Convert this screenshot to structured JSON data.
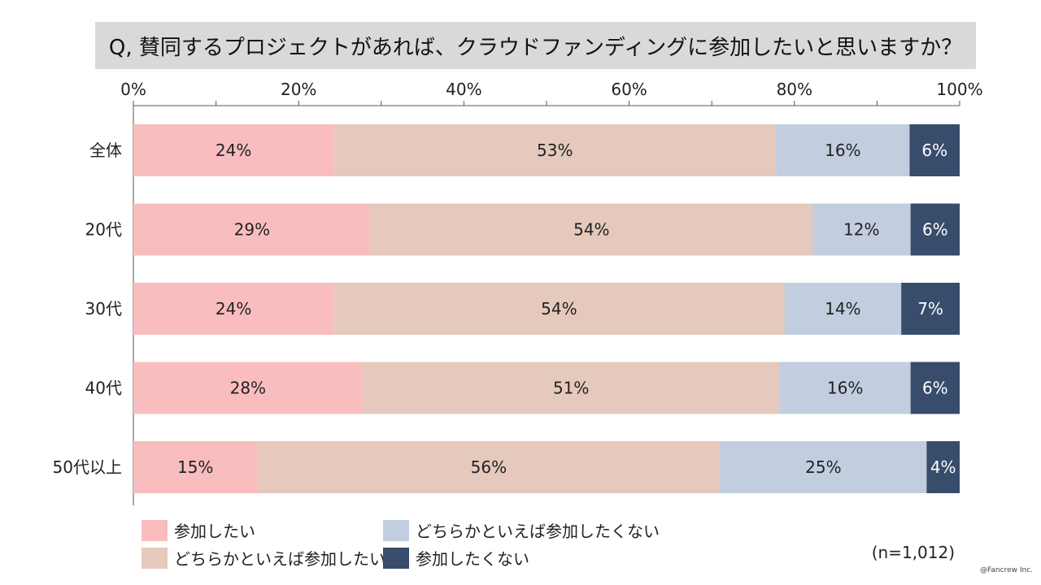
{
  "title": "Q, 賛同するプロジェクトがあれば、クラウドファンディングに参加したいと思いますか？",
  "note": "(n=1,012)",
  "copyright": "@Fancrew Inc.",
  "chart_data": {
    "type": "bar",
    "orientation": "horizontal",
    "stacked": true,
    "percent_stacked": true,
    "title": "Q, 賛同するプロジェクトがあれば、クラウドファンディングに参加したいと思いますか？",
    "xlabel": "",
    "ylabel": "",
    "xlim": [
      0,
      100
    ],
    "x_ticks": [
      "0%",
      "20%",
      "40%",
      "60%",
      "80%",
      "100%"
    ],
    "categories": [
      "全体",
      "20代",
      "30代",
      "40代",
      "50代以上"
    ],
    "series": [
      {
        "name": "参加したい",
        "color": "#f9bdbf",
        "values": [
          24,
          29,
          24,
          28,
          15
        ],
        "labels": [
          "24%",
          "29%",
          "24%",
          "28%",
          "15%"
        ]
      },
      {
        "name": "どちらかといえば参加したい",
        "color": "#e4c9bc",
        "values": [
          53,
          54,
          54,
          51,
          56
        ],
        "labels": [
          "53%",
          "54%",
          "54%",
          "51%",
          "56%"
        ]
      },
      {
        "name": "どちらかといえば参加したくない",
        "color": "#c2cddf",
        "values": [
          16,
          12,
          14,
          16,
          25
        ],
        "labels": [
          "16%",
          "12%",
          "14%",
          "16%",
          "25%"
        ]
      },
      {
        "name": "参加したくない",
        "color": "#384c6c",
        "values": [
          6,
          6,
          7,
          6,
          4
        ],
        "labels": [
          "6%",
          "6%",
          "7%",
          "6%",
          "4%"
        ]
      }
    ],
    "legend_position": "bottom-left",
    "grid": false
  }
}
